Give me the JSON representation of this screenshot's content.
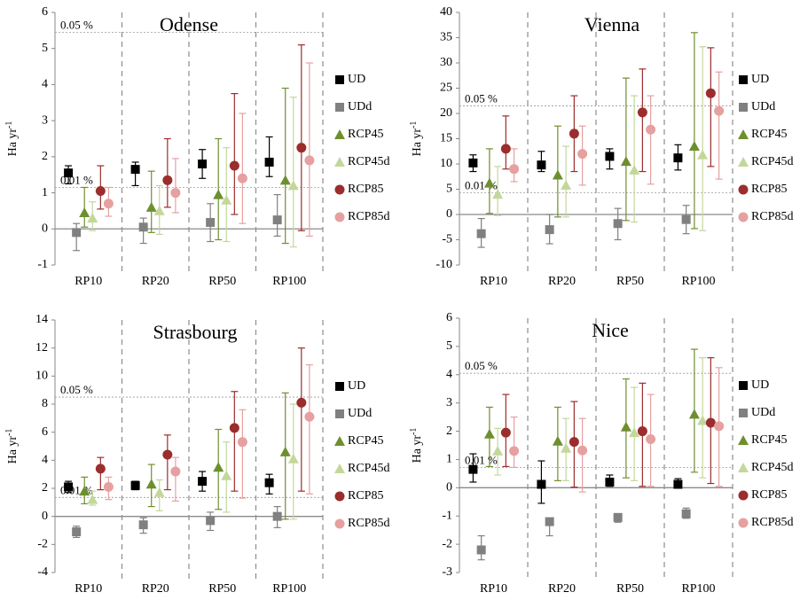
{
  "colors": {
    "UD": "#000000",
    "UDd": "#808080",
    "RCP45": "#6e8f2e",
    "RCP45d": "#c4d79b",
    "RCP85": "#9b2d2d",
    "RCP85d": "#e6a0a0"
  },
  "chart_data": [
    {
      "type": "scatter",
      "title": "Odense",
      "ylabel": "Ha yr-1",
      "ylim": [
        -1,
        6
      ],
      "yticks": [
        "-1",
        "0",
        "1",
        "2",
        "3",
        "4",
        "5",
        "6"
      ],
      "categories": [
        "RP10",
        "RP20",
        "RP50",
        "RP100"
      ],
      "reference_lines": [
        {
          "label": "0.05 %",
          "value": 5.45
        },
        {
          "label": "0.01 %",
          "value": 1.15
        }
      ],
      "legend": [
        "UD",
        "UDd",
        "RCP45",
        "RCP45d",
        "RCP85",
        "RCP85d"
      ],
      "series": [
        {
          "name": "UD",
          "marker": "square",
          "values": [
            1.55,
            1.65,
            1.8,
            1.85
          ],
          "low": [
            1.25,
            1.2,
            1.4,
            1.45
          ],
          "high": [
            1.75,
            1.85,
            2.2,
            2.55
          ]
        },
        {
          "name": "UDd",
          "marker": "square",
          "values": [
            -0.1,
            0.05,
            0.18,
            0.25
          ],
          "low": [
            -0.6,
            -0.4,
            -0.35,
            -0.2
          ],
          "high": [
            0.15,
            0.3,
            0.7,
            0.95
          ]
        },
        {
          "name": "RCP45",
          "marker": "triangle",
          "values": [
            0.45,
            0.6,
            0.95,
            1.35
          ],
          "low": [
            0.05,
            -0.1,
            -0.3,
            -0.4
          ],
          "high": [
            1.15,
            1.6,
            2.5,
            3.9
          ]
        },
        {
          "name": "RCP45d",
          "marker": "triangle",
          "values": [
            0.3,
            0.5,
            0.8,
            1.2
          ],
          "low": [
            -0.05,
            -0.15,
            -0.35,
            -0.5
          ],
          "high": [
            0.75,
            1.2,
            2.25,
            3.65
          ]
        },
        {
          "name": "RCP85",
          "marker": "circle",
          "values": [
            1.05,
            1.35,
            1.75,
            2.25
          ],
          "low": [
            0.55,
            0.6,
            0.4,
            -0.05
          ],
          "high": [
            1.75,
            2.5,
            3.75,
            5.1
          ]
        },
        {
          "name": "RCP85d",
          "marker": "circle",
          "values": [
            0.7,
            1.0,
            1.4,
            1.9
          ],
          "low": [
            0.35,
            0.45,
            0.15,
            -0.2
          ],
          "high": [
            1.15,
            1.95,
            3.2,
            4.6
          ]
        }
      ]
    },
    {
      "type": "scatter",
      "title": "Vienna",
      "ylabel": "Ha yr-1",
      "ylim": [
        -10,
        40
      ],
      "yticks": [
        "-10",
        "-5",
        "0",
        "5",
        "10",
        "15",
        "20",
        "25",
        "30",
        "35",
        "40"
      ],
      "categories": [
        "RP10",
        "RP20",
        "RP50",
        "RP100"
      ],
      "reference_lines": [
        {
          "label": "0.05 %",
          "value": 21.5
        },
        {
          "label": "0.01 %",
          "value": 4.3
        }
      ],
      "legend": [
        "UD",
        "UDd",
        "RCP45",
        "RCP45d",
        "RCP85",
        "RCP85d"
      ],
      "series": [
        {
          "name": "UD",
          "marker": "square",
          "values": [
            10.2,
            9.8,
            11.5,
            11.2
          ],
          "low": [
            8.5,
            8.5,
            9.0,
            8.8
          ],
          "high": [
            11.8,
            12.5,
            13.0,
            13.8
          ]
        },
        {
          "name": "UDd",
          "marker": "square",
          "values": [
            -3.8,
            -3.0,
            -1.8,
            -1.0
          ],
          "low": [
            -6.5,
            -5.8,
            -5.0,
            -3.8
          ],
          "high": [
            -0.8,
            0.0,
            1.2,
            1.8
          ]
        },
        {
          "name": "RCP45",
          "marker": "triangle",
          "values": [
            6.2,
            7.8,
            10.5,
            13.5
          ],
          "low": [
            0.2,
            -0.5,
            -1.2,
            -2.8
          ],
          "high": [
            13.0,
            17.5,
            27.0,
            36.0
          ]
        },
        {
          "name": "RCP45d",
          "marker": "triangle",
          "values": [
            4.0,
            5.8,
            8.8,
            11.8
          ],
          "low": [
            -0.2,
            -0.5,
            -1.5,
            -3.2
          ],
          "high": [
            9.5,
            13.5,
            23.5,
            33.2
          ]
        },
        {
          "name": "RCP85",
          "marker": "circle",
          "values": [
            13.0,
            16.0,
            20.2,
            24.0
          ],
          "low": [
            9.0,
            8.5,
            8.5,
            9.5
          ],
          "high": [
            19.5,
            23.5,
            28.8,
            33.0
          ]
        },
        {
          "name": "RCP85d",
          "marker": "circle",
          "values": [
            9.0,
            12.0,
            16.8,
            20.5
          ],
          "low": [
            6.5,
            5.8,
            6.0,
            7.0
          ],
          "high": [
            13.0,
            17.5,
            23.5,
            28.2
          ]
        }
      ]
    },
    {
      "type": "scatter",
      "title": "Strasbourg",
      "ylabel": "Ha yr-1",
      "ylim": [
        -4,
        14
      ],
      "yticks": [
        "-4",
        "-2",
        "0",
        "2",
        "4",
        "6",
        "8",
        "10",
        "12",
        "14"
      ],
      "categories": [
        "RP10",
        "RP20",
        "RP50",
        "RP100"
      ],
      "reference_lines": [
        {
          "label": "0.05 %",
          "value": 8.5
        },
        {
          "label": "0.01 %",
          "value": 1.35
        }
      ],
      "legend": [
        "UD",
        "UDd",
        "RCP45",
        "RCP45d",
        "RCP85",
        "RCP85d"
      ],
      "series": [
        {
          "name": "UD",
          "marker": "square",
          "values": [
            2.1,
            2.2,
            2.5,
            2.4
          ],
          "low": [
            1.7,
            1.9,
            1.8,
            1.6
          ],
          "high": [
            2.5,
            2.5,
            3.2,
            3.0
          ]
        },
        {
          "name": "UDd",
          "marker": "square",
          "values": [
            -1.1,
            -0.6,
            -0.3,
            0.0
          ],
          "low": [
            -1.5,
            -1.2,
            -1.0,
            -0.8
          ],
          "high": [
            -0.7,
            -0.1,
            0.3,
            0.7
          ]
        },
        {
          "name": "RCP45",
          "marker": "triangle",
          "values": [
            1.8,
            2.3,
            3.5,
            4.6
          ],
          "low": [
            0.9,
            0.7,
            0.5,
            -0.2
          ],
          "high": [
            2.8,
            3.7,
            6.2,
            8.8
          ]
        },
        {
          "name": "RCP45d",
          "marker": "triangle",
          "values": [
            1.2,
            1.7,
            2.9,
            4.1
          ],
          "low": [
            0.8,
            0.4,
            0.3,
            -0.2
          ],
          "high": [
            1.8,
            2.6,
            5.3,
            8.0
          ]
        },
        {
          "name": "RCP85",
          "marker": "circle",
          "values": [
            3.4,
            4.4,
            6.3,
            8.1
          ],
          "low": [
            1.9,
            1.9,
            1.8,
            1.8
          ],
          "high": [
            4.2,
            5.8,
            8.9,
            12.0
          ]
        },
        {
          "name": "RCP85d",
          "marker": "circle",
          "values": [
            2.1,
            3.2,
            5.3,
            7.1
          ],
          "low": [
            1.2,
            1.1,
            1.3,
            1.6
          ],
          "high": [
            2.8,
            4.2,
            7.6,
            10.8
          ]
        }
      ]
    },
    {
      "type": "scatter",
      "title": "Nice",
      "ylabel": "Ha yr-1",
      "ylim": [
        -3,
        6
      ],
      "yticks": [
        "-3",
        "-2",
        "-1",
        "0",
        "1",
        "2",
        "3",
        "4",
        "5",
        "6"
      ],
      "categories": [
        "RP10",
        "RP20",
        "RP50",
        "RP100"
      ],
      "reference_lines": [
        {
          "label": "0.05 %",
          "value": 4.05
        },
        {
          "label": "0.01 %",
          "value": 0.72
        }
      ],
      "legend": [
        "UD",
        "UDd",
        "RCP45",
        "RCP45d",
        "RCP85",
        "RCP85d"
      ],
      "series": [
        {
          "name": "UD",
          "marker": "square",
          "values": [
            0.65,
            0.12,
            0.2,
            0.12
          ],
          "low": [
            0.2,
            -0.55,
            0.05,
            0.0
          ],
          "high": [
            1.2,
            0.95,
            0.45,
            0.32
          ]
        },
        {
          "name": "UDd",
          "marker": "square",
          "values": [
            -2.2,
            -1.2,
            -1.05,
            -0.92
          ],
          "low": [
            -2.55,
            -1.7,
            -1.22,
            -1.08
          ],
          "high": [
            -1.7,
            -1.1,
            -0.95,
            -0.72
          ]
        },
        {
          "name": "RCP45",
          "marker": "triangle",
          "values": [
            1.9,
            1.65,
            2.15,
            2.6
          ],
          "low": [
            0.75,
            0.25,
            0.35,
            0.55
          ],
          "high": [
            2.85,
            2.85,
            3.85,
            4.9
          ]
        },
        {
          "name": "RCP45d",
          "marker": "triangle",
          "values": [
            1.3,
            1.4,
            1.95,
            2.38
          ],
          "low": [
            0.45,
            0.25,
            0.25,
            0.35
          ],
          "high": [
            2.1,
            2.45,
            3.55,
            4.6
          ]
        },
        {
          "name": "RCP85",
          "marker": "circle",
          "values": [
            1.95,
            1.62,
            2.0,
            2.3
          ],
          "low": [
            0.75,
            0.02,
            0.05,
            0.15
          ],
          "high": [
            3.3,
            3.05,
            3.7,
            4.6
          ]
        },
        {
          "name": "RCP85d",
          "marker": "circle",
          "values": [
            1.3,
            1.32,
            1.72,
            2.18
          ],
          "low": [
            0.72,
            -0.15,
            0.05,
            0.05
          ],
          "high": [
            2.5,
            2.45,
            3.3,
            4.25
          ]
        }
      ]
    }
  ]
}
